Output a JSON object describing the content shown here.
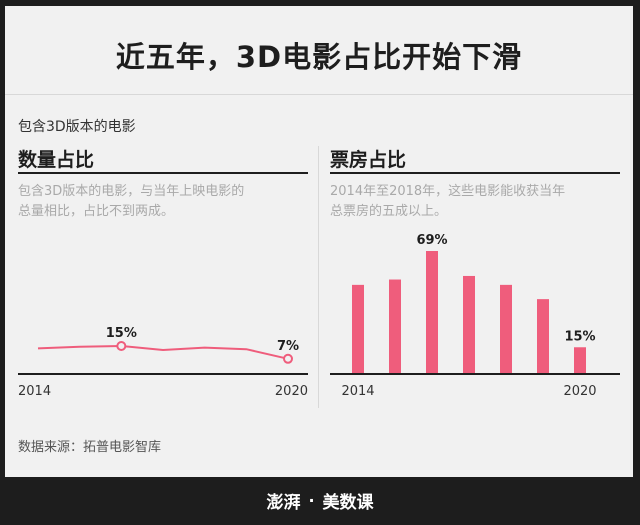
{
  "title": "近五年，3D电影占比开始下滑",
  "section_caption": "包含3D版本的电影",
  "left_panel": {
    "title": "数量占比",
    "description_lines": [
      "包含3D版本的电影，与当年上映电影的",
      "总量相比，占比不到两成。"
    ]
  },
  "right_panel": {
    "title": "票房占比",
    "description_lines": [
      "2014年至2018年，这些电影能收获当年",
      "总票房的五成以上。"
    ]
  },
  "source": "数据来源：拓普电影智库",
  "footer": {
    "brand": "澎湃",
    "separator": "·",
    "column": "美数课"
  },
  "colors": {
    "accent": "#ef5d7c",
    "text": "#1e1e1e"
  },
  "chart_data": [
    {
      "type": "line",
      "x": [
        2014,
        2015,
        2016,
        2017,
        2018,
        2019,
        2020
      ],
      "series": [
        {
          "values": [
            13.5,
            14.5,
            15,
            12.5,
            14,
            13,
            7
          ]
        }
      ],
      "labeled_points": [
        {
          "x": 2016,
          "label": "15%"
        },
        {
          "x": 2020,
          "label": "7%"
        }
      ],
      "x_ticks": [
        "2014",
        "2020"
      ],
      "ylim": [
        0,
        100
      ]
    },
    {
      "type": "bar",
      "categories": [
        "2014",
        "2015",
        "2016",
        "2017",
        "2018",
        "2019",
        "2020"
      ],
      "values": [
        50,
        53,
        69,
        55,
        50,
        42,
        15
      ],
      "labeled_bars": [
        {
          "index": 2,
          "label": "69%"
        },
        {
          "index": 6,
          "label": "15%"
        }
      ],
      "x_ticks": [
        "2014",
        "2020"
      ],
      "ylim": [
        0,
        69
      ]
    }
  ]
}
